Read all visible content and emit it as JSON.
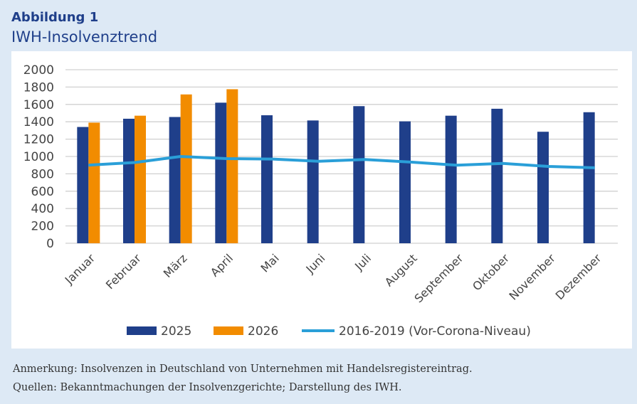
{
  "figure": {
    "label": "Abbildung 1",
    "title": "IWH-Insolvenztrend"
  },
  "notes": {
    "remark": "Anmerkung: Insolvenzen in Deutschland von Unternehmen mit Handelsregistereintrag.",
    "sources": "Quellen: Bekanntmachungen der Insolvenzgerichte; Darstellung des IWH."
  },
  "chart_data": {
    "type": "bar",
    "categories": [
      "Januar",
      "Februar",
      "März",
      "April",
      "Mai",
      "Juni",
      "Juli",
      "August",
      "September",
      "Oktober",
      "November",
      "Dezember"
    ],
    "series": [
      {
        "name": "2025",
        "type": "bar",
        "color": "#1f3f8a",
        "values": [
          1340,
          1435,
          1455,
          1620,
          1475,
          1415,
          1580,
          1405,
          1470,
          1550,
          1285,
          1510
        ]
      },
      {
        "name": "2026",
        "type": "bar",
        "color": "#f28c00",
        "values": [
          1390,
          1470,
          1715,
          1775,
          null,
          null,
          null,
          null,
          null,
          null,
          null,
          null
        ]
      },
      {
        "name": "2016-2019 (Vor-Corona-Niveau)",
        "type": "line",
        "color": "#2a9fd8",
        "values": [
          900,
          930,
          1000,
          975,
          970,
          945,
          965,
          935,
          900,
          920,
          885,
          870
        ]
      }
    ],
    "yticks": [
      0,
      200,
      400,
      600,
      800,
      1000,
      1200,
      1400,
      1600,
      1800,
      2000
    ],
    "ylim": [
      0,
      2000
    ],
    "grid": true,
    "legend_position": "bottom"
  }
}
